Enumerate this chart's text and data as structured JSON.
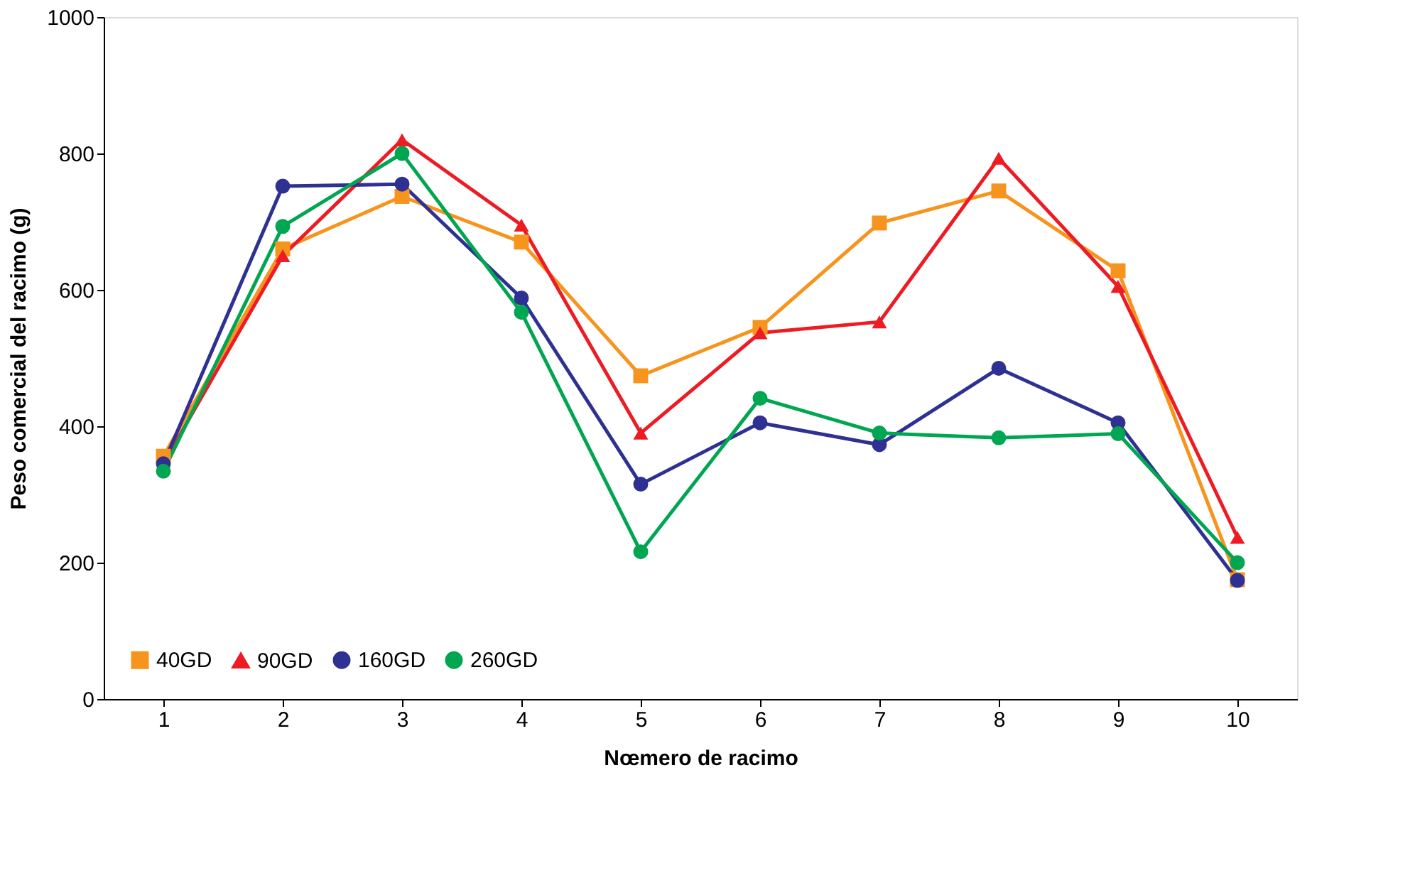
{
  "chart_data": {
    "type": "line",
    "xlabel": "Nœmero de racimo",
    "ylabel": "Peso comercial del racimo (g)",
    "categories": [
      "1",
      "2",
      "3",
      "4",
      "5",
      "6",
      "7",
      "8",
      "9",
      "10"
    ],
    "series": [
      {
        "name": "40GD",
        "color": "#f7941d",
        "marker": "square",
        "values": [
          356,
          660,
          737,
          670,
          474,
          545,
          698,
          745,
          628,
          175
        ]
      },
      {
        "name": "90GD",
        "color": "#ed1c24",
        "marker": "triangle",
        "values": [
          345,
          650,
          820,
          695,
          390,
          537,
          553,
          793,
          605,
          237
        ]
      },
      {
        "name": "160GD",
        "color": "#2e3192",
        "marker": "circle",
        "values": [
          345,
          752,
          755,
          588,
          315,
          405,
          373,
          485,
          405,
          174
        ]
      },
      {
        "name": "260GD",
        "color": "#00a651",
        "marker": "circle",
        "values": [
          334,
          693,
          800,
          567,
          216,
          441,
          390,
          383,
          389,
          200
        ]
      }
    ],
    "ylim": [
      0,
      1000
    ],
    "yticks": [
      0,
      200,
      400,
      600,
      800,
      1000
    ],
    "grid": false,
    "legend": "bottom left",
    "line_style": "solid"
  }
}
